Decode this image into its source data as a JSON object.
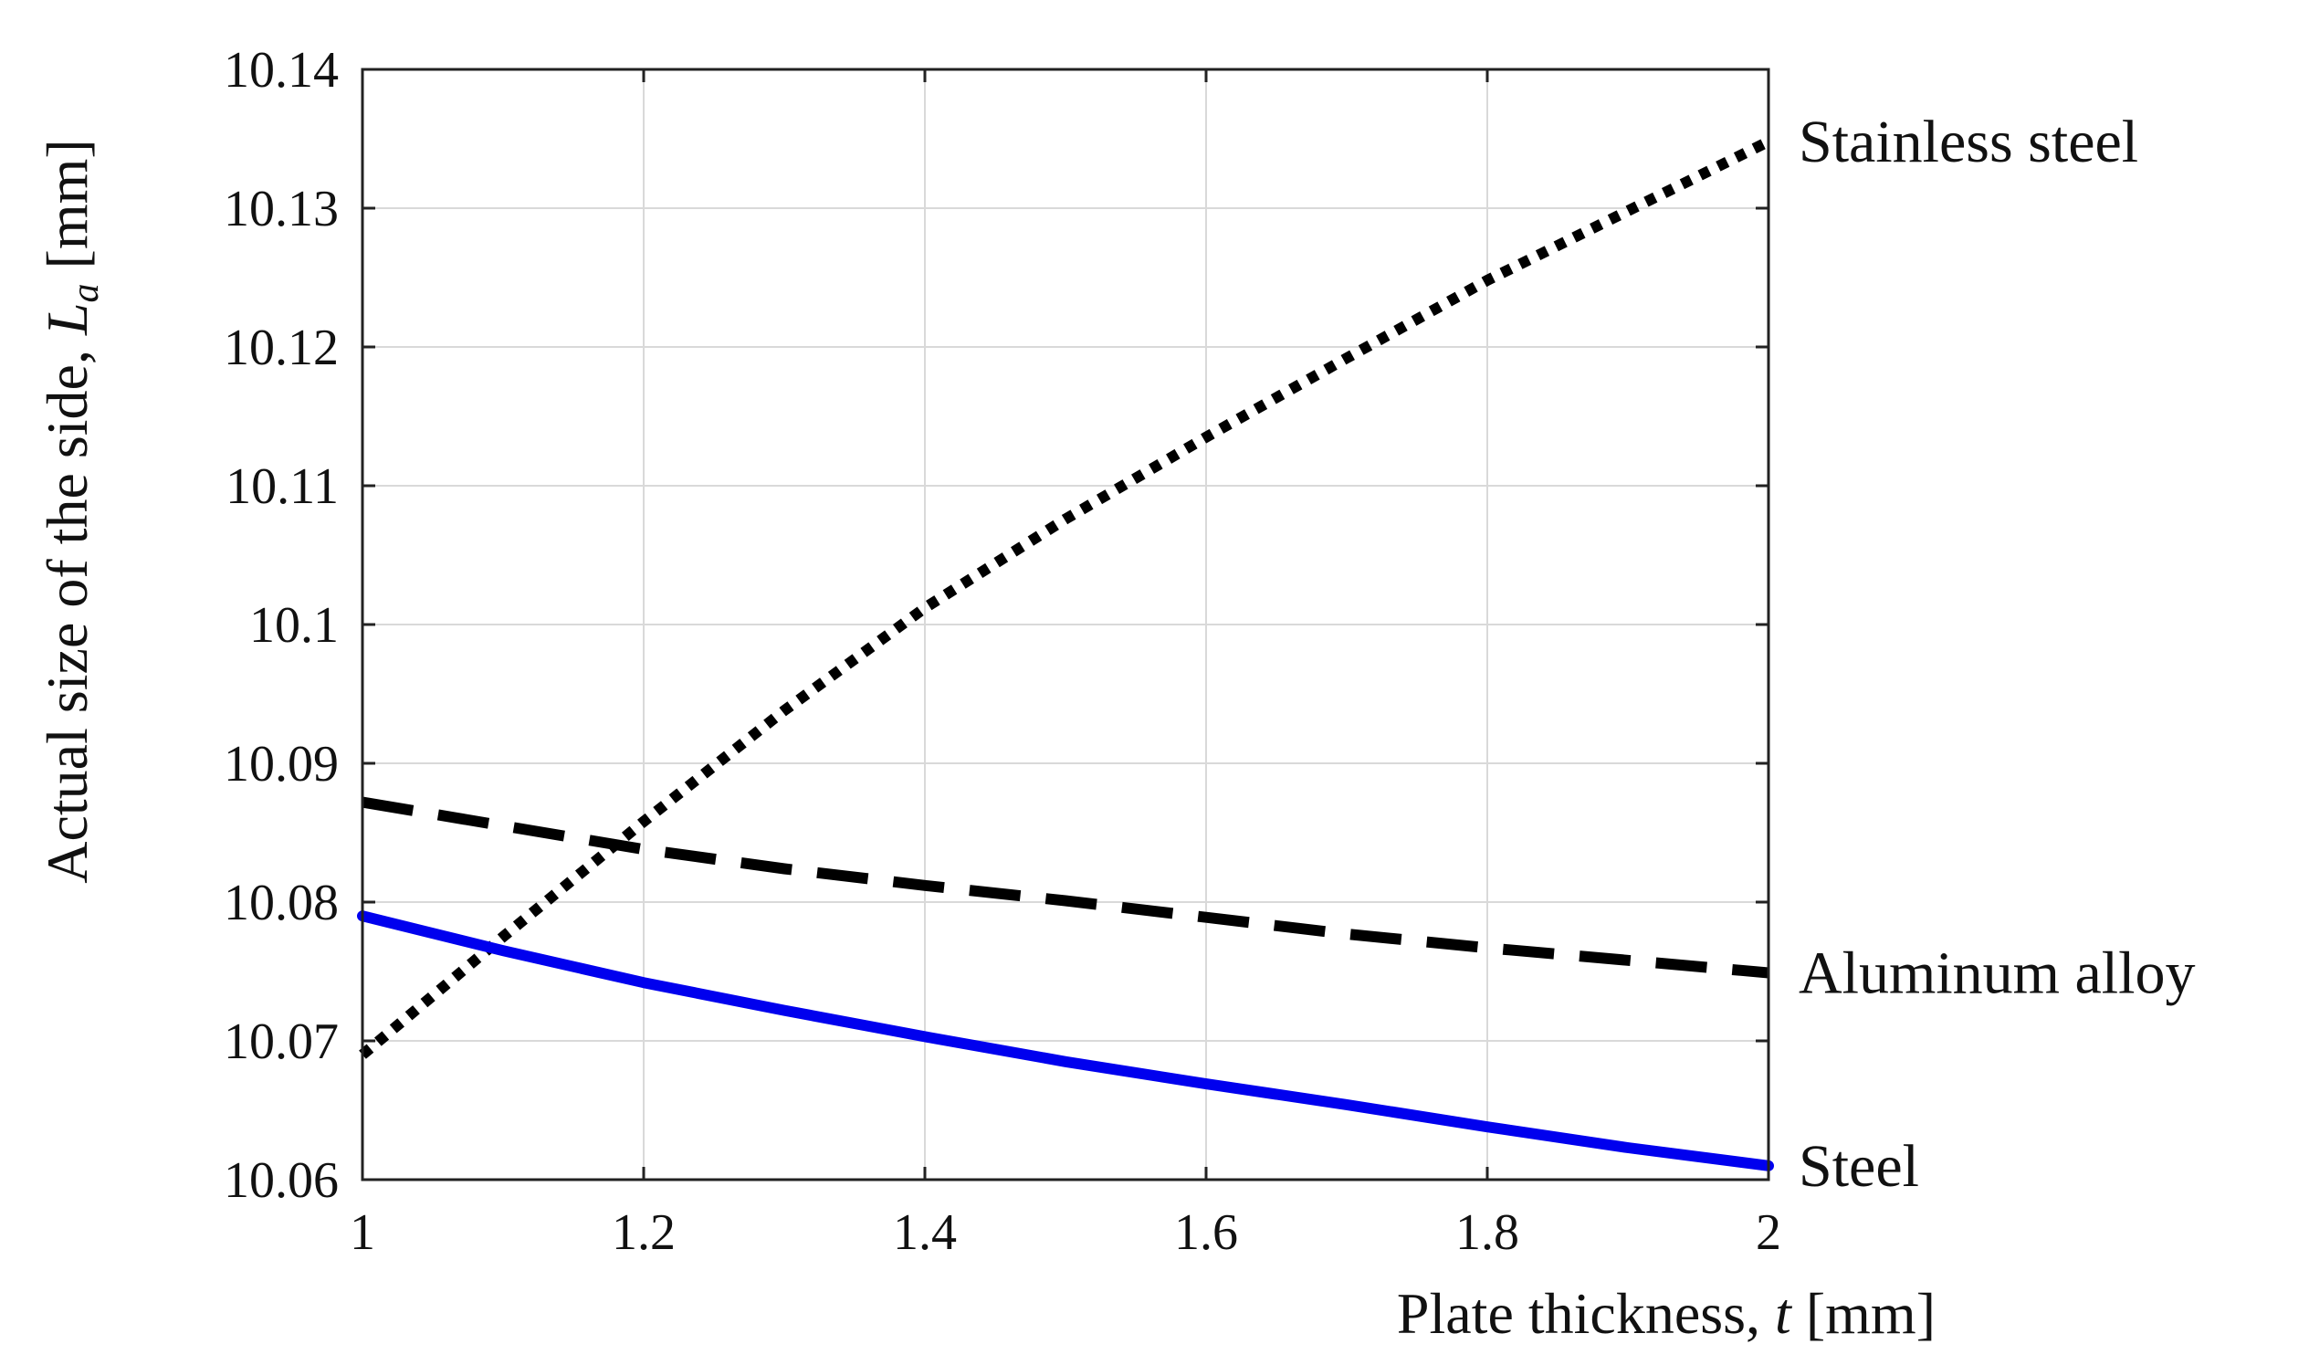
{
  "chart_data": {
    "type": "line",
    "title": "",
    "xlabel": {
      "prefix": "Plate thickness, ",
      "symbol": "t",
      "unit": " [mm]"
    },
    "ylabel": {
      "prefix": "Actual size of the side, ",
      "symbol": "L",
      "subscript": "a",
      "unit": " [mm]"
    },
    "xlim": [
      1,
      2
    ],
    "ylim": [
      10.06,
      10.14
    ],
    "xticks": [
      1,
      1.2,
      1.4,
      1.6,
      1.8,
      2
    ],
    "xtick_labels": [
      "1",
      "1.2",
      "1.4",
      "1.6",
      "1.8",
      "2"
    ],
    "yticks": [
      10.06,
      10.07,
      10.08,
      10.09,
      10.1,
      10.11,
      10.12,
      10.13,
      10.14
    ],
    "ytick_labels": [
      "10.06",
      "10.07",
      "10.08",
      "10.09",
      "10.1",
      "10.11",
      "10.12",
      "10.13",
      "10.14"
    ],
    "grid": true,
    "legend": "inline labels at right end of each line",
    "series": [
      {
        "name": "Stainless steel",
        "style": "dotted",
        "color": "#000000",
        "x": [
          1.0,
          1.1,
          1.2,
          1.3,
          1.4,
          1.5,
          1.6,
          1.7,
          1.8,
          1.9,
          2.0
        ],
        "y": [
          10.069,
          10.0775,
          10.0858,
          10.0938,
          10.1012,
          10.1076,
          10.1135,
          10.1192,
          10.1248,
          10.1298,
          10.1348
        ]
      },
      {
        "name": "Aluminum alloy",
        "style": "dashed",
        "color": "#000000",
        "x": [
          1.0,
          1.1,
          1.2,
          1.3,
          1.4,
          1.5,
          1.6,
          1.7,
          1.8,
          1.9,
          2.0
        ],
        "y": [
          10.0872,
          10.0855,
          10.0838,
          10.0824,
          10.0812,
          10.0801,
          10.0789,
          10.0777,
          10.0767,
          10.0758,
          10.0749
        ]
      },
      {
        "name": "Steel",
        "style": "solid",
        "color": "#0000ee",
        "x": [
          1.0,
          1.1,
          1.2,
          1.3,
          1.4,
          1.5,
          1.6,
          1.7,
          1.8,
          1.9,
          2.0
        ],
        "y": [
          10.079,
          10.0765,
          10.0742,
          10.0722,
          10.0703,
          10.0685,
          10.0669,
          10.0654,
          10.0638,
          10.0623,
          10.061
        ]
      }
    ]
  }
}
